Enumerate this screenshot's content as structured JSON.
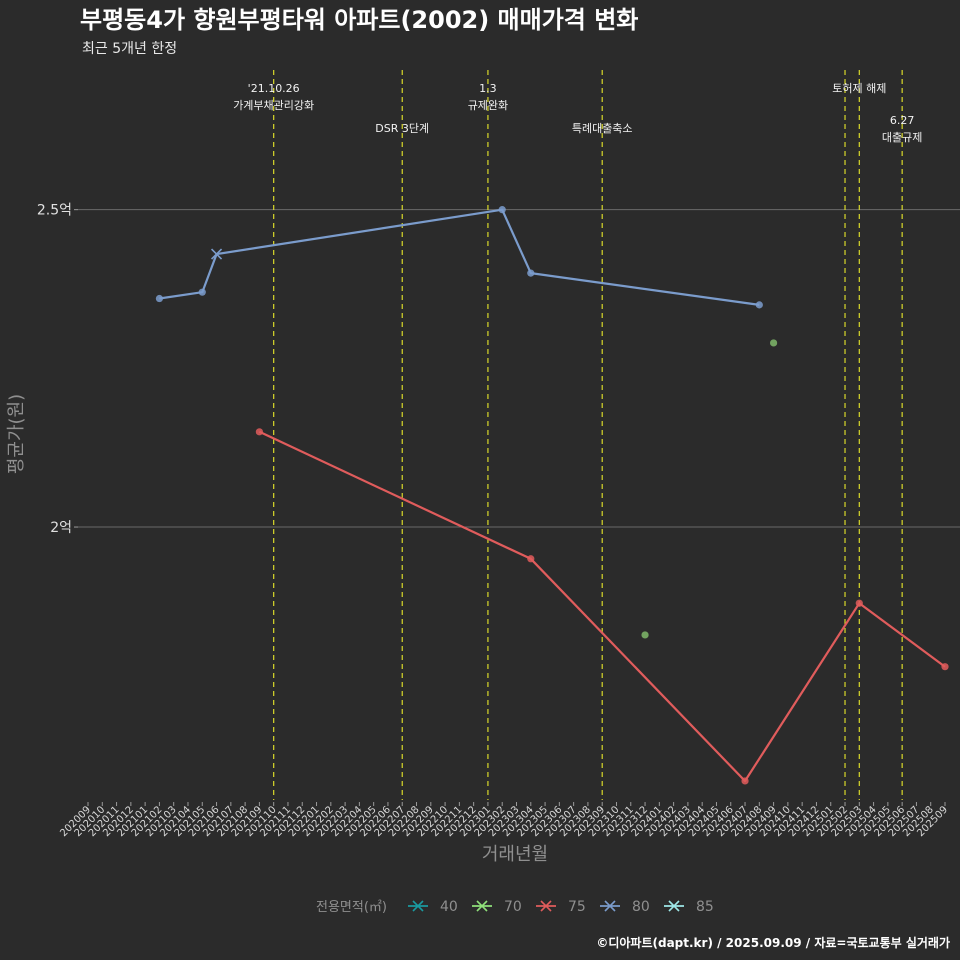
{
  "chart_data": {
    "type": "line",
    "title": "부평동4가 향원부평타워 아파트(2002) 매매가격 변화",
    "subtitle": "최근 5개년 한정",
    "xlabel": "거래년월",
    "ylabel": "평균가(원)",
    "caption": "©디아파트(dapt.kr) / 2025.09.09 / 자료=국토교통부 실거래가",
    "x_categories": [
      "202009",
      "202010",
      "202011",
      "202012",
      "202101",
      "202102",
      "202103",
      "202104",
      "202105",
      "202106",
      "202107",
      "202108",
      "202109",
      "202110",
      "202111",
      "202112",
      "202201",
      "202202",
      "202203",
      "202204",
      "202205",
      "202206",
      "202207",
      "202208",
      "202209",
      "202210",
      "202211",
      "202212",
      "202301",
      "202302",
      "202303",
      "202304",
      "202305",
      "202306",
      "202307",
      "202308",
      "202309",
      "202310",
      "202311",
      "202312",
      "202401",
      "202402",
      "202403",
      "202404",
      "202405",
      "202406",
      "202407",
      "202408",
      "202409",
      "202410",
      "202411",
      "202412",
      "202501",
      "202502",
      "202503",
      "202504",
      "202505",
      "202506",
      "202507",
      "202508",
      "202509"
    ],
    "y_ticks": [
      {
        "value": 200000000,
        "label": "2억"
      },
      {
        "value": 250000000,
        "label": "2.5억"
      }
    ],
    "ylim": [
      157000000,
      272000000
    ],
    "grid": true,
    "legend": {
      "title": "전용면적(㎡)",
      "placement": "bottom",
      "items": [
        {
          "label": "40",
          "color": "#1a9aa0"
        },
        {
          "label": "70",
          "color": "#8fe07a"
        },
        {
          "label": "75",
          "color": "#e05c5c"
        },
        {
          "label": "80",
          "color": "#7b9ccc"
        },
        {
          "label": "85",
          "color": "#9ee8e8"
        }
      ]
    },
    "events": [
      {
        "x": "202110",
        "lines": [
          "'21.10.26",
          "가계부채관리강화"
        ],
        "row": 0
      },
      {
        "x": "202207",
        "lines": [
          "DSR 3단계"
        ],
        "row": 1
      },
      {
        "x": "202301",
        "lines": [
          "1.3",
          "규제완화"
        ],
        "row": 0
      },
      {
        "x": "202309",
        "lines": [
          "특례대출축소"
        ],
        "row": 1
      },
      {
        "x": "202502",
        "lines": [],
        "row": 0
      },
      {
        "x": "202503",
        "lines": [
          "토허제 해제"
        ],
        "row": 0
      },
      {
        "x": "202506",
        "lines": [
          "6.27",
          "대출규제"
        ],
        "row": 2
      }
    ],
    "series": [
      {
        "name": "80",
        "color": "#7b9ccc",
        "points": [
          {
            "x": "202102",
            "y": 236000000
          },
          {
            "x": "202105",
            "y": 237000000
          },
          {
            "x": "202106",
            "y": 243000000,
            "marker": "x"
          },
          {
            "x": "202302",
            "y": 250000000
          },
          {
            "x": "202304",
            "y": 240000000
          },
          {
            "x": "202408",
            "y": 235000000
          }
        ]
      },
      {
        "name": "75",
        "color": "#e05c5c",
        "points": [
          {
            "x": "202109",
            "y": 215000000
          },
          {
            "x": "202304",
            "y": 195000000
          },
          {
            "x": "202407",
            "y": 160000000
          },
          {
            "x": "202503",
            "y": 188000000
          },
          {
            "x": "202509",
            "y": 178000000
          }
        ]
      },
      {
        "name": "70",
        "color": "#7fb86a",
        "points": [
          {
            "x": "202409",
            "y": 229000000
          },
          {
            "x": "202312",
            "y": 183000000
          }
        ],
        "connected": false
      }
    ]
  }
}
